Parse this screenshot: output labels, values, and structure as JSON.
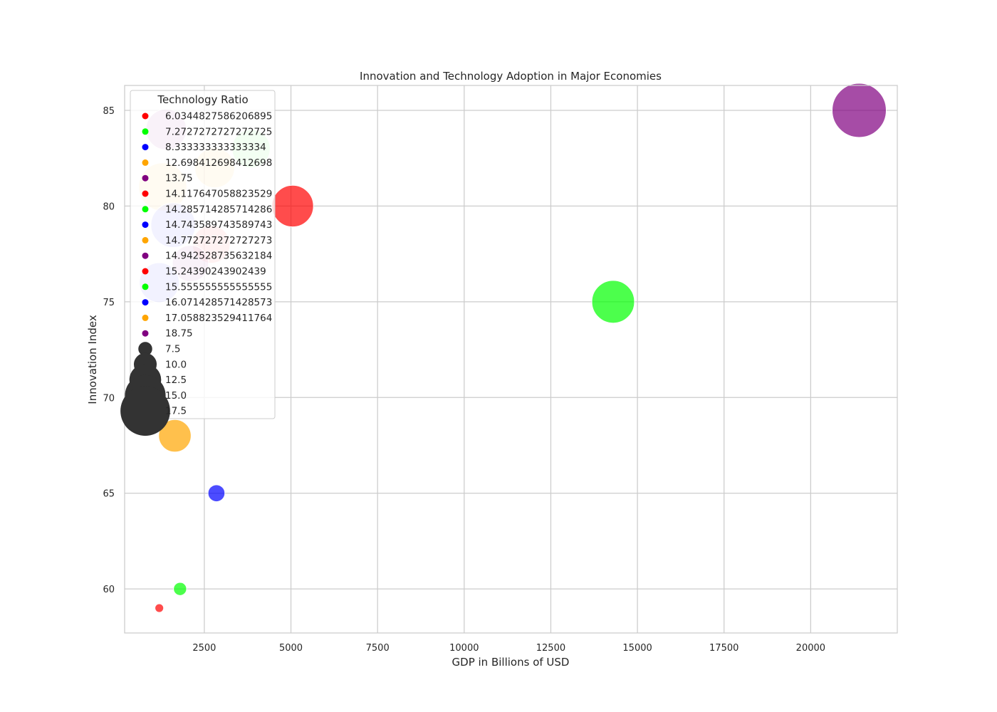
{
  "chart_data": {
    "type": "scatter",
    "title": "Innovation and Technology Adoption in Major Economies",
    "xlabel": "GDP in Billions of USD",
    "ylabel": "Innovation Index",
    "xlim": [
      200,
      22500
    ],
    "ylim": [
      57.7,
      86.3
    ],
    "xticks": [
      2500,
      5000,
      7500,
      10000,
      12500,
      15000,
      17500,
      20000
    ],
    "yticks": [
      60,
      65,
      70,
      75,
      80,
      85
    ],
    "grid": true,
    "legend": {
      "title": "Technology Ratio",
      "placement": "upper-left",
      "hue_entries": [
        {
          "label": "6.0344827586206895",
          "color": "#ff0000"
        },
        {
          "label": "7.2727272727272725",
          "color": "#00ff00"
        },
        {
          "label": "8.333333333333334",
          "color": "#0000ff"
        },
        {
          "label": "12.698412698412698",
          "color": "#ffa500"
        },
        {
          "label": "13.75",
          "color": "#800080"
        },
        {
          "label": "14.117647058823529",
          "color": "#ff0000"
        },
        {
          "label": "14.285714285714286",
          "color": "#00ff00"
        },
        {
          "label": "14.743589743589743",
          "color": "#0000ff"
        },
        {
          "label": "14.772727272727273",
          "color": "#ffa500"
        },
        {
          "label": "14.942528735632184",
          "color": "#800080"
        },
        {
          "label": "15.24390243902439",
          "color": "#ff0000"
        },
        {
          "label": "15.555555555555555",
          "color": "#00ff00"
        },
        {
          "label": "16.071428571428573",
          "color": "#0000ff"
        },
        {
          "label": "17.058823529411764",
          "color": "#ffa500"
        },
        {
          "label": "18.75",
          "color": "#800080"
        }
      ],
      "size_entries": [
        {
          "label": "7.5",
          "value": 7.5
        },
        {
          "label": "10.0",
          "value": 10.0
        },
        {
          "label": "12.5",
          "value": 12.5
        },
        {
          "label": "15.0",
          "value": 15.0
        },
        {
          "label": "17.5",
          "value": 17.5
        }
      ]
    },
    "size_range": [
      6.0,
      18.75
    ],
    "points": [
      {
        "x": 21400,
        "y": 85,
        "ratio": 18.75,
        "color": "#800080",
        "alpha": 0.7
      },
      {
        "x": 14300,
        "y": 75,
        "ratio": 15.555555555555555,
        "color": "#00ff00",
        "alpha": 0.7
      },
      {
        "x": 5050,
        "y": 80,
        "ratio": 15.24390243902439,
        "color": "#ff0000",
        "alpha": 0.7
      },
      {
        "x": 3850,
        "y": 83,
        "ratio": 14.285714285714286,
        "color": "#00ff00",
        "alpha": 0.25
      },
      {
        "x": 2800,
        "y": 82,
        "ratio": 14.772727272727273,
        "color": "#ffa500",
        "alpha": 0.25
      },
      {
        "x": 1400,
        "y": 84,
        "ratio": 14.942528735632184,
        "color": "#800080",
        "alpha": 0.25
      },
      {
        "x": 1300,
        "y": 81,
        "ratio": 17.058823529411764,
        "color": "#ffa500",
        "alpha": 0.25
      },
      {
        "x": 1600,
        "y": 79,
        "ratio": 16.071428571428573,
        "color": "#0000ff",
        "alpha": 0.25
      },
      {
        "x": 2700,
        "y": 78,
        "ratio": 14.117647058823529,
        "color": "#ff0000",
        "alpha": 0.25
      },
      {
        "x": 2100,
        "y": 77,
        "ratio": 13.75,
        "color": "#800080",
        "alpha": 0.25
      },
      {
        "x": 1200,
        "y": 76,
        "ratio": 14.743589743589743,
        "color": "#0000ff",
        "alpha": 0.25
      },
      {
        "x": 1650,
        "y": 68,
        "ratio": 12.698412698412698,
        "color": "#ffa500",
        "alpha": 0.7
      },
      {
        "x": 2850,
        "y": 65,
        "ratio": 8.333333333333334,
        "color": "#0000ff",
        "alpha": 0.7
      },
      {
        "x": 1800,
        "y": 60,
        "ratio": 7.2727272727272725,
        "color": "#00ff00",
        "alpha": 0.7
      },
      {
        "x": 1200,
        "y": 59,
        "ratio": 6.0344827586206895,
        "color": "#ff0000",
        "alpha": 0.7
      }
    ]
  }
}
